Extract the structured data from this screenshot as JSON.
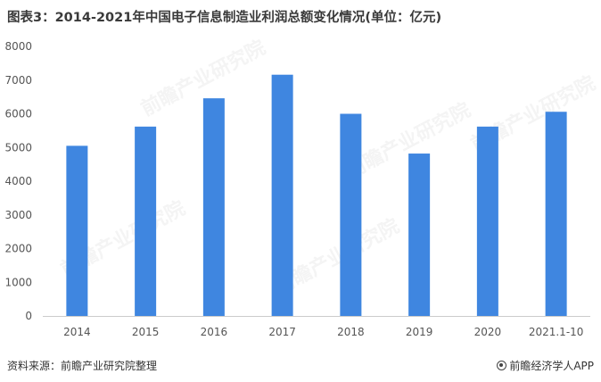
{
  "title": "图表3：2014-2021年中国电子信息制造业利润总额变化情况(单位：亿元)",
  "source": "资料来源：前瞻产业研究院整理",
  "brand": "前瞻经济学人APP",
  "watermark": "前瞻产业研究院",
  "colors": {
    "bar": "#3f86e0",
    "axis": "#cccccc"
  },
  "chart_data": {
    "type": "bar",
    "categories": [
      "2014",
      "2015",
      "2016",
      "2017",
      "2018",
      "2019",
      "2020",
      "2021.1-10"
    ],
    "values": [
      5050,
      5620,
      6460,
      7160,
      6000,
      4820,
      5620,
      6060
    ],
    "ylim": [
      0,
      8000
    ],
    "yticks": [
      0,
      1000,
      2000,
      3000,
      4000,
      5000,
      6000,
      7000,
      8000
    ],
    "grid": false
  }
}
